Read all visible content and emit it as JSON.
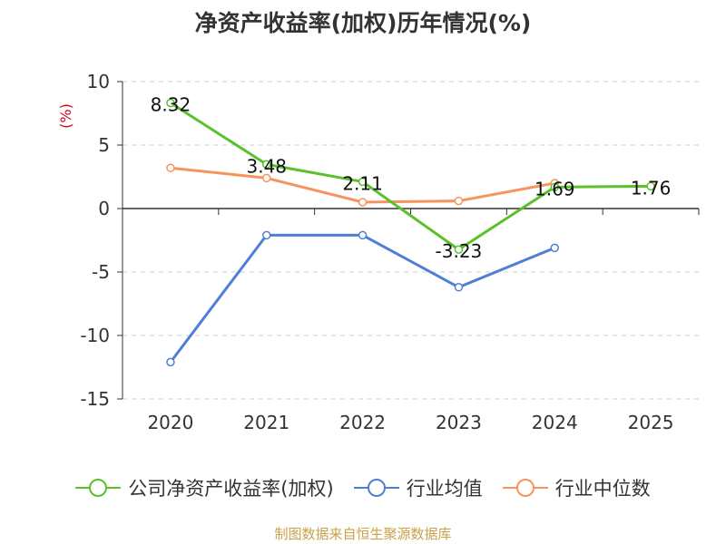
{
  "title": "净资产收益率(加权)历年情况(%)",
  "source": "制图数据来自恒生聚源数据库",
  "chart_data": {
    "type": "line",
    "ylabel": "(%)",
    "ylim": [
      -15,
      10
    ],
    "yticks": [
      10,
      5,
      0,
      -5,
      -10,
      -15
    ],
    "categories": [
      "2020",
      "2021",
      "2022",
      "2023",
      "2024",
      "2025"
    ],
    "grid": true,
    "legend_position": "bottom",
    "series": [
      {
        "name": "公司净资产收益率(加权)",
        "color": "#5ac12b",
        "values": [
          8.32,
          3.48,
          2.11,
          -3.23,
          1.69,
          1.76
        ],
        "labels": [
          "8.32",
          "3.48",
          "2.11",
          "-3.23",
          "1.69",
          "1.76"
        ]
      },
      {
        "name": "行业均值",
        "color": "#4e7fd6",
        "values": [
          -12.1,
          -2.1,
          -2.1,
          -6.2,
          -3.1,
          null
        ]
      },
      {
        "name": "行业中位数",
        "color": "#f5955d",
        "values": [
          3.2,
          2.4,
          0.5,
          0.6,
          2.0,
          null
        ]
      }
    ]
  }
}
